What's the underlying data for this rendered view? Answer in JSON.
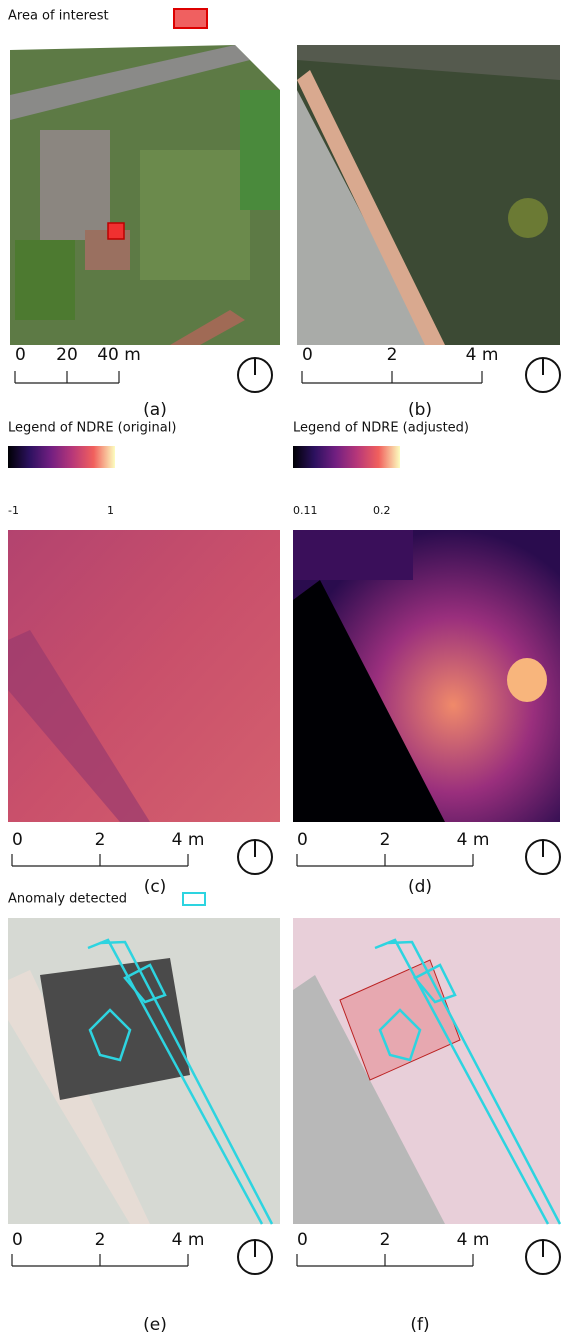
{
  "legend_area": {
    "title": "Area of interest"
  },
  "legend_ndre_original": {
    "title": "Legend of NDRE (original)",
    "min": "-1",
    "max": "1"
  },
  "legend_ndre_adjusted": {
    "title": "Legend of NDRE (adjusted)",
    "min": "0.11",
    "max": "0.2"
  },
  "legend_anomaly": {
    "title": "Anomaly detected"
  },
  "panels": [
    {
      "label": "(a)",
      "scale": [
        "0",
        "20",
        "40 m"
      ]
    },
    {
      "label": "(b)",
      "scale": [
        "0",
        "2",
        "4 m"
      ]
    },
    {
      "label": "(c)",
      "scale": [
        "0",
        "2",
        "4 m"
      ]
    },
    {
      "label": "(d)",
      "scale": [
        "0",
        "2",
        "4 m"
      ]
    },
    {
      "label": "(e)",
      "scale": [
        "0",
        "2",
        "4 m"
      ]
    },
    {
      "label": "(f)",
      "scale": [
        "0",
        "2",
        "4 m"
      ]
    }
  ]
}
